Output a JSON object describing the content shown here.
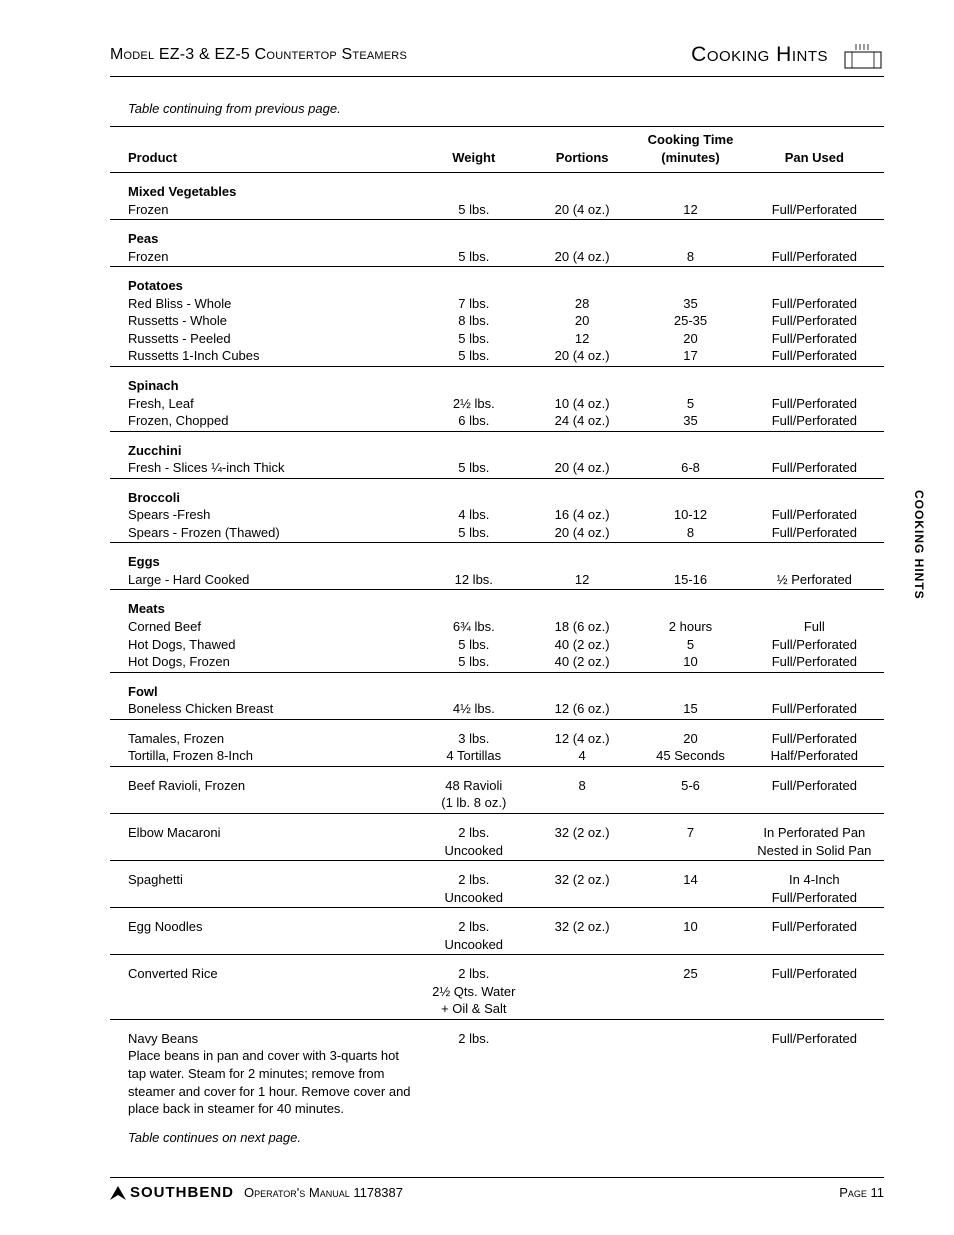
{
  "header": {
    "left": "Model EZ-3 & EZ-5 Countertop Steamers",
    "right": "Cooking Hints"
  },
  "notes": {
    "top": "Table continuing from previous page.",
    "bottom": "Table continues on next page."
  },
  "columns": {
    "product": "Product",
    "weight": "Weight",
    "portions": "Portions",
    "time_line1": "Cooking Time",
    "time_line2": "(minutes)",
    "pan": "Pan Used"
  },
  "sections": [
    {
      "header": "Mixed Vegetables",
      "rows": [
        {
          "product": "Frozen",
          "weight": "5 lbs.",
          "portions": "20 (4 oz.)",
          "time": "12",
          "pan": "Full/Perforated"
        }
      ]
    },
    {
      "header": "Peas",
      "rows": [
        {
          "product": "Frozen",
          "weight": "5 lbs.",
          "portions": "20 (4 oz.)",
          "time": "8",
          "pan": "Full/Perforated"
        }
      ]
    },
    {
      "header": "Potatoes",
      "rows": [
        {
          "product": "Red Bliss - Whole",
          "weight": "7 lbs.",
          "portions": "28",
          "time": "35",
          "pan": "Full/Perforated"
        },
        {
          "product": "Russetts - Whole",
          "weight": "8 lbs.",
          "portions": "20",
          "time": "25-35",
          "pan": "Full/Perforated"
        },
        {
          "product": "Russetts - Peeled",
          "weight": "5 lbs.",
          "portions": "12",
          "time": "20",
          "pan": "Full/Perforated"
        },
        {
          "product": "Russetts 1-Inch Cubes",
          "weight": "5 lbs.",
          "portions": "20 (4 oz.)",
          "time": "17",
          "pan": "Full/Perforated"
        }
      ]
    },
    {
      "header": "Spinach",
      "rows": [
        {
          "product": "Fresh, Leaf",
          "weight": "2½ lbs.",
          "portions": "10 (4 oz.)",
          "time": "5",
          "pan": "Full/Perforated"
        },
        {
          "product": "Frozen, Chopped",
          "weight": "6 lbs.",
          "portions": "24 (4 oz.)",
          "time": "35",
          "pan": "Full/Perforated"
        }
      ]
    },
    {
      "header": "Zucchini",
      "rows": [
        {
          "product": "Fresh - Slices ¼-inch Thick",
          "weight": "5 lbs.",
          "portions": "20 (4 oz.)",
          "time": "6-8",
          "pan": "Full/Perforated"
        }
      ]
    },
    {
      "header": "Broccoli",
      "rows": [
        {
          "product": "Spears -Fresh",
          "weight": "4 lbs.",
          "portions": "16 (4 oz.)",
          "time": "10-12",
          "pan": "Full/Perforated"
        },
        {
          "product": "Spears - Frozen (Thawed)",
          "weight": "5 lbs.",
          "portions": "20 (4 oz.)",
          "time": "8",
          "pan": "Full/Perforated"
        }
      ]
    },
    {
      "header": "Eggs",
      "rows": [
        {
          "product": "Large - Hard Cooked",
          "weight": "12 lbs.",
          "portions": "12",
          "time": "15-16",
          "pan": "½ Perforated"
        }
      ]
    },
    {
      "header": "Meats",
      "rows": [
        {
          "product": "Corned Beef",
          "weight": "6¾ lbs.",
          "portions": "18 (6 oz.)",
          "time": "2 hours",
          "pan": "Full"
        },
        {
          "product": "Hot Dogs, Thawed",
          "weight": "5 lbs.",
          "portions": "40 (2 oz.)",
          "time": "5",
          "pan": "Full/Perforated"
        },
        {
          "product": "Hot Dogs, Frozen",
          "weight": "5 lbs.",
          "portions": "40 (2 oz.)",
          "time": "10",
          "pan": "Full/Perforated"
        }
      ]
    },
    {
      "header": "Fowl",
      "rows": [
        {
          "product": "Boneless Chicken Breast",
          "weight": "4½ lbs.",
          "portions": "12 (6 oz.)",
          "time": "15",
          "pan": "Full/Perforated"
        }
      ]
    },
    {
      "rows": [
        {
          "product": "Tamales, Frozen",
          "weight": "3 lbs.",
          "portions": "12 (4 oz.)",
          "time": "20",
          "pan": "Full/Perforated"
        },
        {
          "product": "Tortilla, Frozen 8-Inch",
          "weight": "4 Tortillas",
          "portions": "4",
          "time": "45 Seconds",
          "pan": "Half/Perforated"
        }
      ]
    },
    {
      "rows": [
        {
          "product": "Beef Ravioli, Frozen",
          "weight": "48 Ravioli",
          "weight2": "(1 lb. 8 oz.)",
          "portions": "8",
          "time": "5-6",
          "pan": "Full/Perforated"
        }
      ]
    },
    {
      "rows": [
        {
          "product": "Elbow Macaroni",
          "weight": "2 lbs.",
          "weight2": "Uncooked",
          "portions": "32 (2 oz.)",
          "time": "7",
          "pan": "In Perforated Pan",
          "pan2": "Nested in Solid Pan"
        }
      ]
    },
    {
      "rows": [
        {
          "product": "Spaghetti",
          "weight": "2 lbs.",
          "weight2": "Uncooked",
          "portions": "32 (2 oz.)",
          "time": "14",
          "pan": "In 4-Inch",
          "pan2": "Full/Perforated"
        }
      ]
    },
    {
      "rows": [
        {
          "product": "Egg Noodles",
          "weight": "2 lbs.",
          "weight2": "Uncooked",
          "portions": "32 (2 oz.)",
          "time": "10",
          "pan": "Full/Perforated"
        }
      ]
    },
    {
      "rows": [
        {
          "product": "Converted Rice",
          "weight": "2 lbs.",
          "weight2": "2½ Qts. Water",
          "weight3": "+ Oil & Salt",
          "portions": "",
          "time": "25",
          "pan": "Full/Perforated"
        }
      ]
    },
    {
      "rows": [
        {
          "product": "Navy Beans",
          "product_sub": "Place beans in pan and cover with 3-quarts hot tap water. Steam for 2 minutes; remove from steamer and cover for 1 hour. Remove cover and place back in steamer for 40 minutes.",
          "weight": "2 lbs.",
          "portions": "",
          "time": "",
          "pan": "Full/Perforated"
        }
      ],
      "no_rule": true
    }
  ],
  "side_tab": "COOKING HINTS",
  "footer": {
    "brand": "SOUTHBEND",
    "center": "Operator's Manual 1178387",
    "right": "Page 11"
  }
}
